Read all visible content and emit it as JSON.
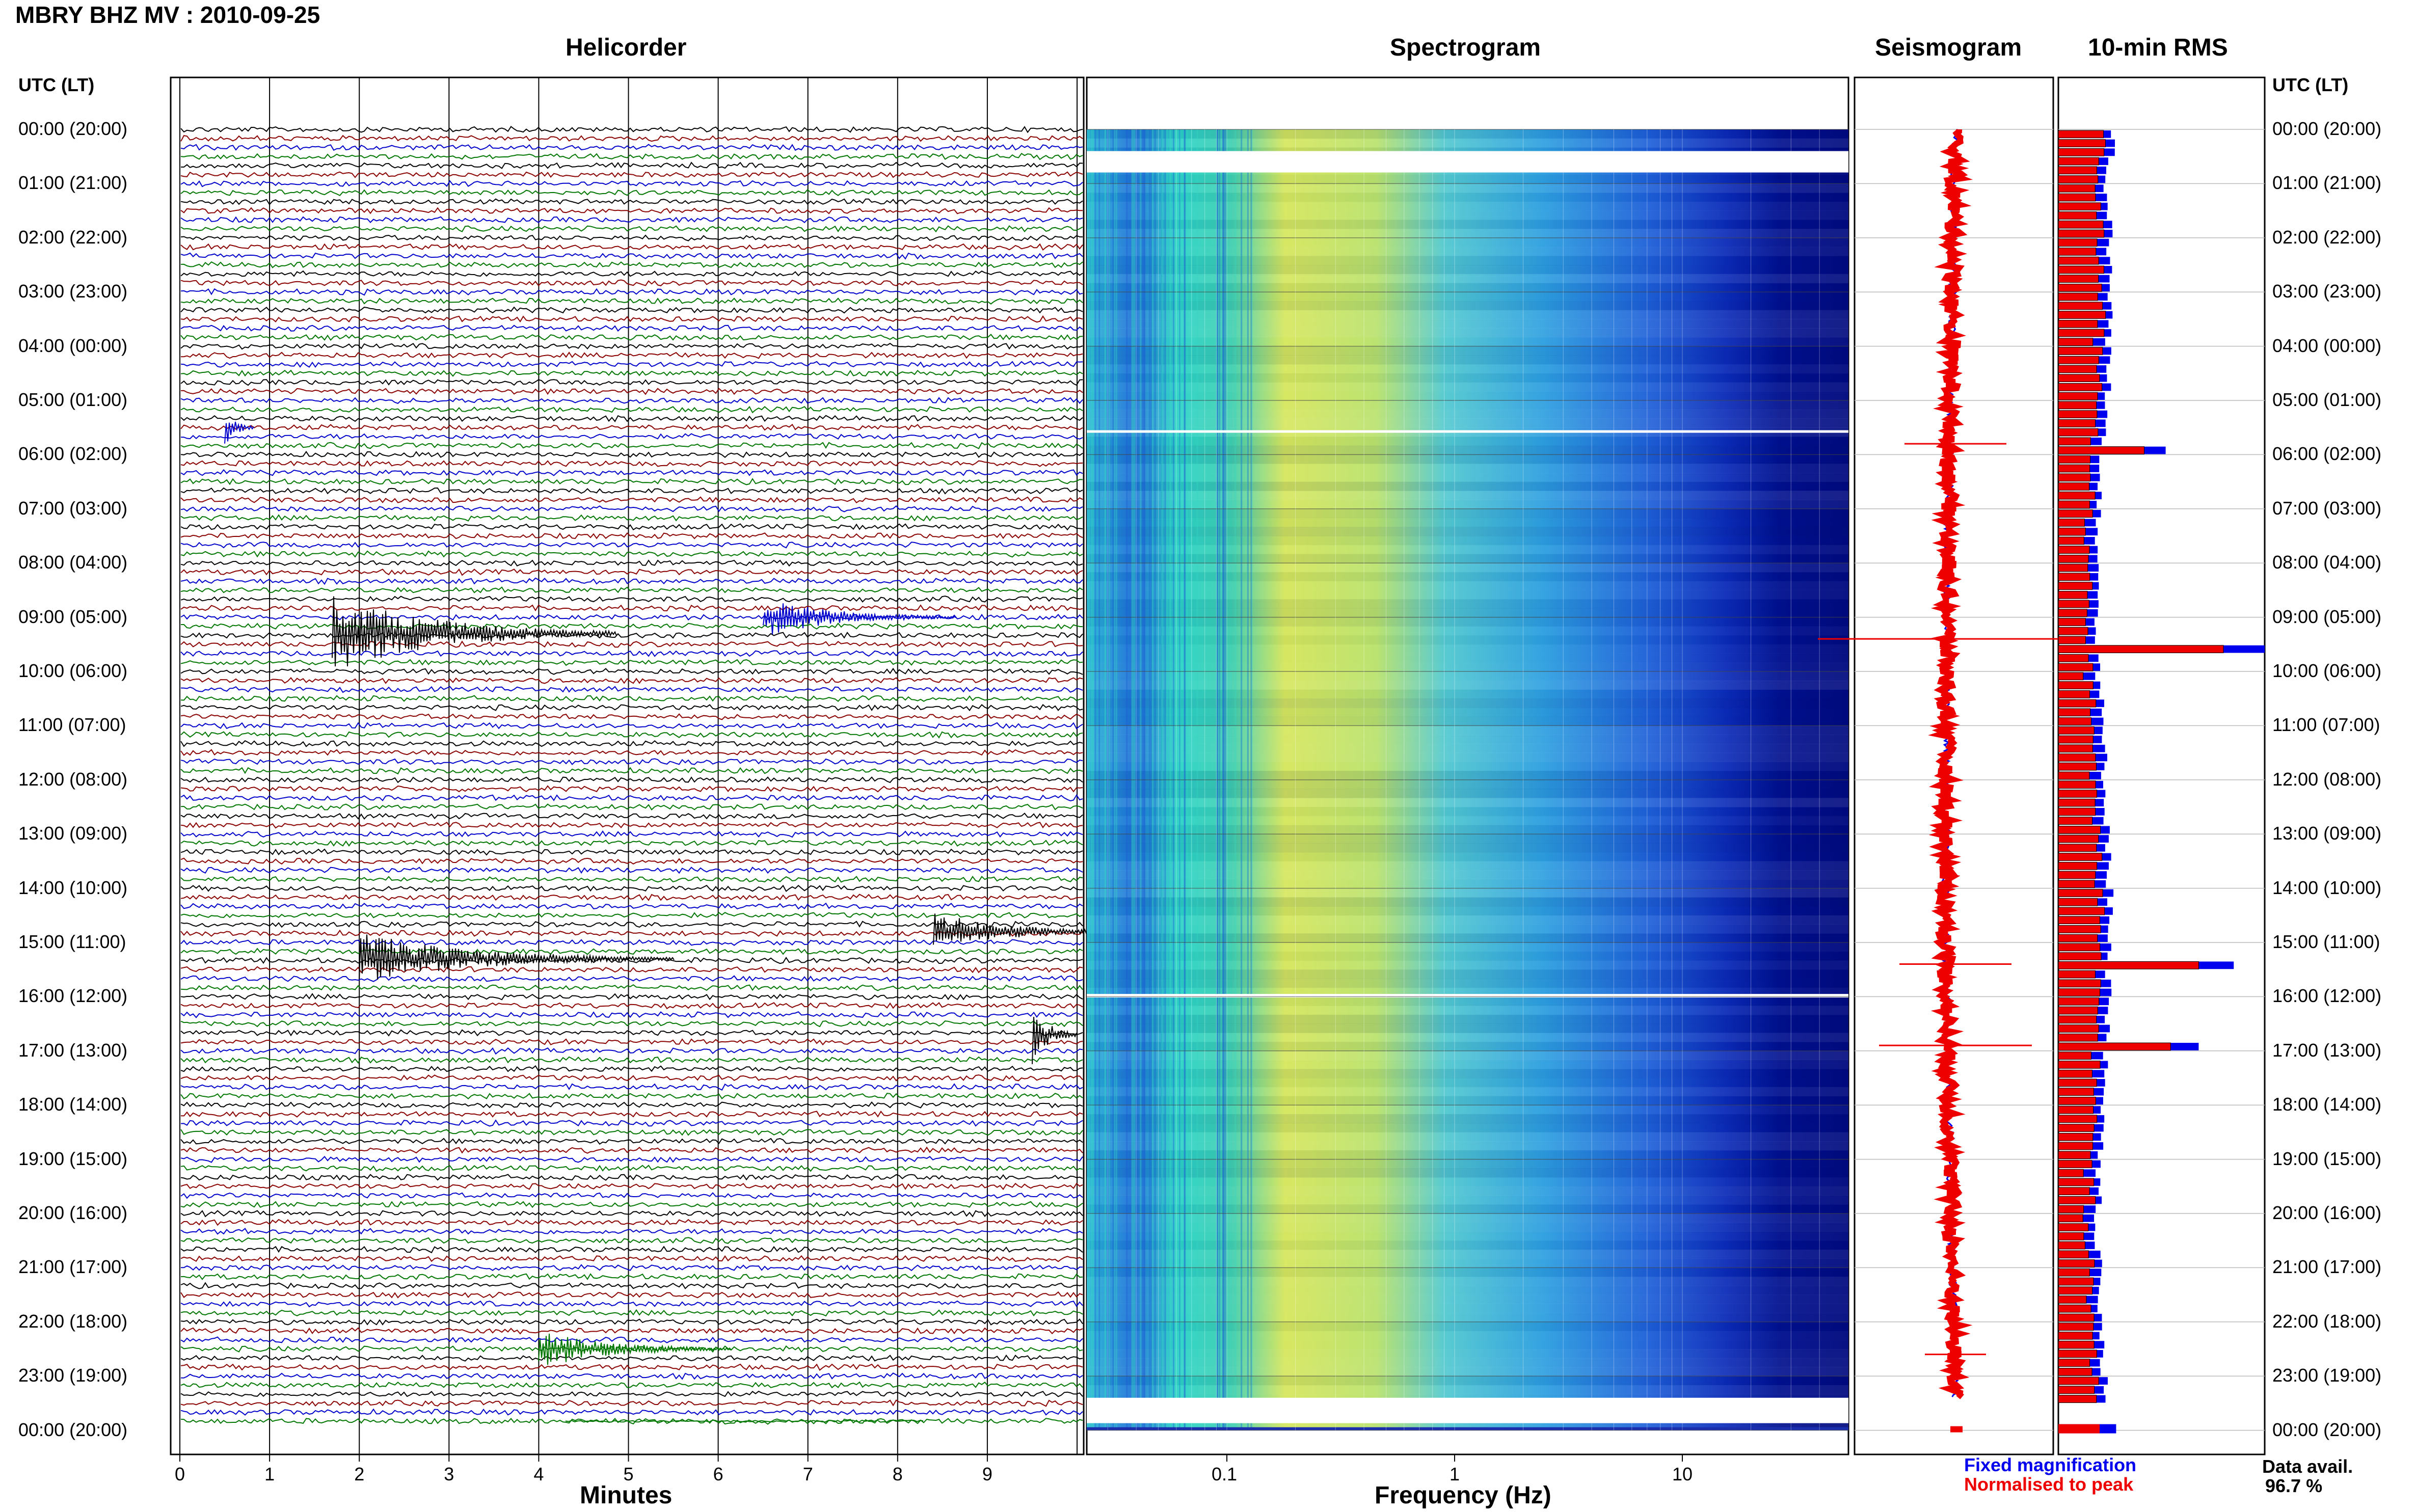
{
  "header": {
    "title": "MBRY BHZ MV : 2010-09-25"
  },
  "panels": {
    "helicorder": "Helicorder",
    "spectrogram": "Spectrogram",
    "seismogram": "Seismogram",
    "rms": "10-min RMS"
  },
  "axis": {
    "left_header": "UTC (LT)",
    "right_header": "UTC (LT)",
    "minutes_label": "Minutes",
    "frequency_label": "Frequency (Hz)",
    "minute_ticks": [
      "0",
      "1",
      "2",
      "3",
      "4",
      "5",
      "6",
      "7",
      "8",
      "9"
    ],
    "freq_ticks": [
      "0.1",
      "1",
      "10"
    ],
    "hour_labels": [
      "00:00 (20:00)",
      "01:00 (21:00)",
      "02:00 (22:00)",
      "03:00 (23:00)",
      "04:00 (00:00)",
      "05:00 (01:00)",
      "06:00 (02:00)",
      "07:00 (03:00)",
      "08:00 (04:00)",
      "09:00 (05:00)",
      "10:00 (06:00)",
      "11:00 (07:00)",
      "12:00 (08:00)",
      "13:00 (09:00)",
      "14:00 (10:00)",
      "15:00 (11:00)",
      "16:00 (12:00)",
      "17:00 (13:00)",
      "18:00 (14:00)",
      "19:00 (15:00)",
      "20:00 (16:00)",
      "21:00 (17:00)",
      "22:00 (18:00)",
      "23:00 (19:00)",
      "00:00 (20:00)"
    ]
  },
  "legend": {
    "fixed": "Fixed magnification",
    "normalised": "Normalised to peak",
    "fixed_color": "#0000ee",
    "normalised_color": "#ee0000"
  },
  "data_avail": {
    "label": "Data avail.",
    "value": "96.7 %"
  },
  "colors": {
    "trace_cycle": [
      "#000000",
      "#8b0000",
      "#0000cd",
      "#007700"
    ],
    "spectrogram_low": "#00008b",
    "spectrogram_mid": "#2ad0d0",
    "spectrogram_high": "#e8e85a"
  },
  "chart_data": [
    {
      "type": "heatmap",
      "panel": "Helicorder",
      "xlabel": "Minutes",
      "xlim": [
        0,
        10
      ],
      "hours_utc": 24,
      "lines_per_hour": 6,
      "events": [
        {
          "hour": 5.5,
          "minute": 0.5
        },
        {
          "hour": 9.3,
          "minute": 1.7
        },
        {
          "hour": 9.0,
          "minute": 6.5
        },
        {
          "hour": 14.8,
          "minute": 8.4
        },
        {
          "hour": 15.3,
          "minute": 2.0
        },
        {
          "hour": 16.7,
          "minute": 9.5
        },
        {
          "hour": 22.5,
          "minute": 4.0
        }
      ]
    },
    {
      "type": "heatmap",
      "panel": "Spectrogram",
      "xlabel": "Frequency (Hz)",
      "xscale": "log",
      "xlim": [
        0.03,
        50
      ]
    },
    {
      "type": "bar",
      "panel": "10-min RMS",
      "orientation": "horizontal",
      "series": [
        {
          "name": "Fixed magnification"
        },
        {
          "name": "Normalised to peak"
        }
      ],
      "peaks": [
        {
          "hour": 5.8,
          "value": 0.52
        },
        {
          "hour": 9.5,
          "value": 1.0
        },
        {
          "hour": 15.3,
          "value": 0.85
        },
        {
          "hour": 16.8,
          "value": 0.68
        }
      ]
    }
  ]
}
